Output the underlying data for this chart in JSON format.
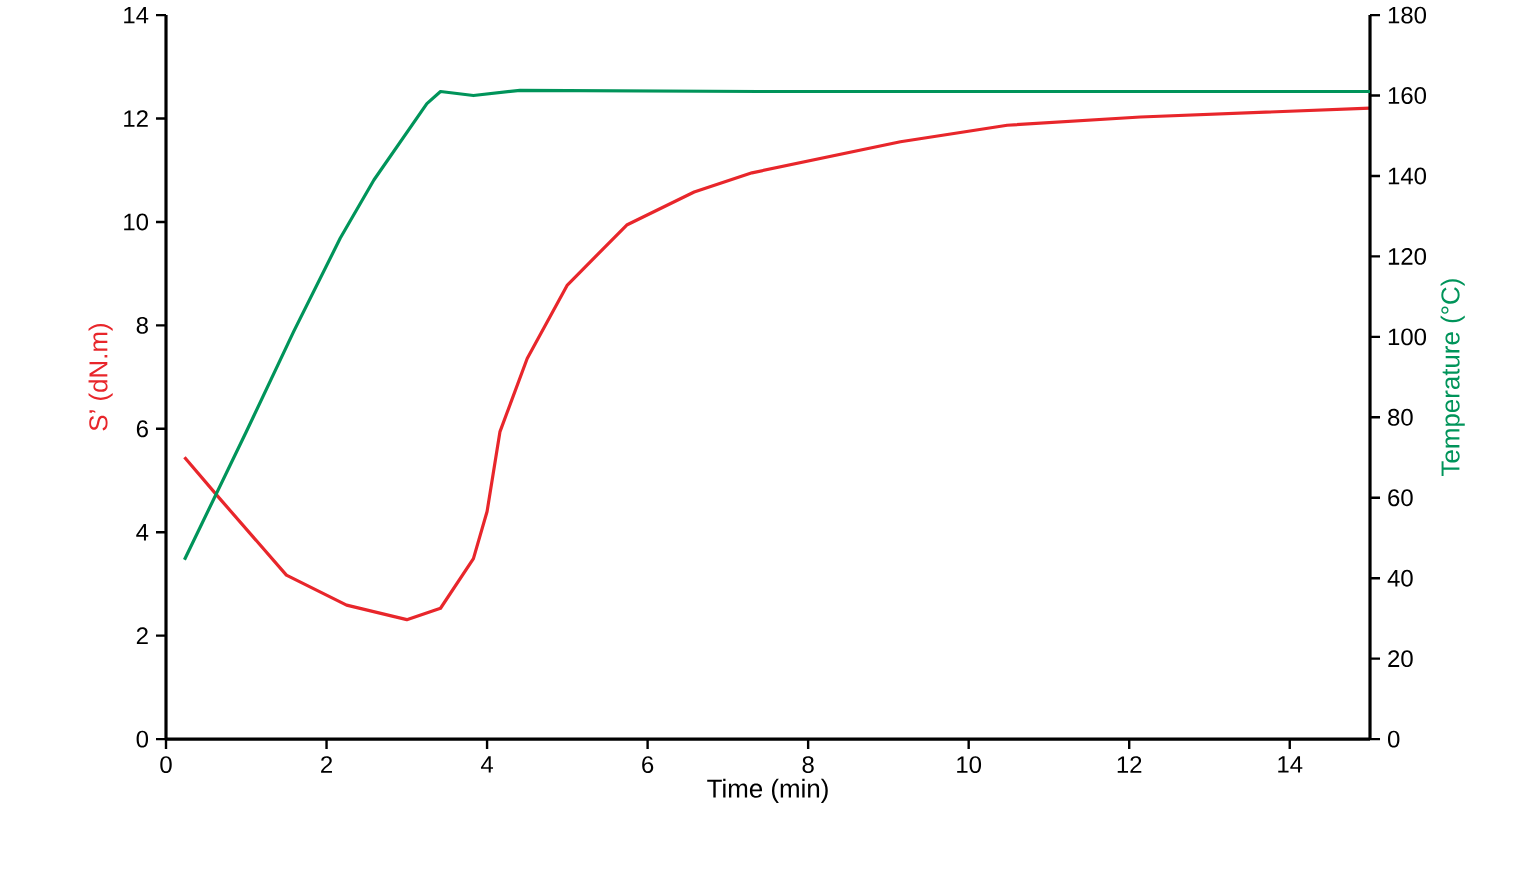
{
  "chart_data": {
    "type": "line",
    "xlabel": "Time (min)",
    "ylabel": "S’ (dN.m)",
    "y2label": "Temperature (°C)",
    "xlim": [
      0,
      15
    ],
    "xticks": [
      0,
      2,
      4,
      6,
      8,
      10,
      12,
      14
    ],
    "ylim": [
      0,
      14
    ],
    "yticks": [
      0,
      2,
      4,
      6,
      8,
      10,
      12,
      14
    ],
    "y2lim": [
      0,
      180
    ],
    "y2ticks": [
      0,
      20,
      40,
      60,
      80,
      100,
      120,
      140,
      160,
      180
    ],
    "line_style": "solid",
    "marker": "none",
    "series": [
      {
        "color": "#e8262b",
        "x": [
          0.23,
          0.67,
          1.5,
          2.25,
          3.0,
          3.42,
          3.83,
          4.0,
          4.16,
          4.5,
          5.0,
          5.74,
          6.58,
          7.3,
          9.15,
          10.48,
          12.14,
          15.0
        ],
        "values": [
          5.45,
          4.65,
          3.17,
          2.59,
          2.31,
          2.53,
          3.49,
          4.4,
          5.94,
          7.36,
          8.78,
          9.94,
          10.58,
          10.95,
          11.55,
          11.87,
          12.03,
          12.2
        ]
      },
      {
        "color": "#00945a",
        "axis": "y2",
        "x": [
          0.23,
          1.0,
          1.59,
          2.17,
          2.59,
          3.25,
          3.42,
          3.83,
          4.41,
          7.4,
          15.0
        ],
        "values": [
          44.6,
          76.4,
          101.3,
          124.5,
          139,
          158,
          161,
          160,
          161.3,
          161,
          161
        ]
      }
    ]
  }
}
